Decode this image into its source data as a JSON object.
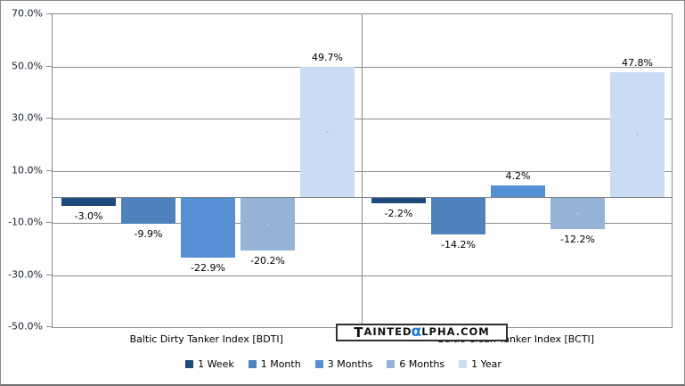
{
  "chart_data": {
    "type": "bar",
    "title": "",
    "categories": [
      "Baltic Dirty Tanker Index [BDTI]",
      "Baltic Clean Tanker Index [BCTI]"
    ],
    "series": [
      {
        "name": "1 Week",
        "color": "#1e4a7c",
        "values": [
          -3.0,
          -2.2
        ],
        "labels": [
          "-3.0%",
          "-2.2%"
        ]
      },
      {
        "name": "1 Month",
        "color": "#4f81bd",
        "values": [
          -9.9,
          -14.2
        ],
        "labels": [
          "-9.9%",
          "-14.2%"
        ]
      },
      {
        "name": "3 Months",
        "color": "#5590d5",
        "values": [
          -22.9,
          4.2
        ],
        "labels": [
          "-22.9%",
          "4.2%"
        ]
      },
      {
        "name": "6 Months",
        "color": "#95b3d7",
        "dot_color": "rgba(255,255,255,0.35)",
        "values": [
          -20.2,
          -12.2
        ],
        "labels": [
          "-20.2%",
          "-12.2%"
        ]
      },
      {
        "name": "1 Year",
        "color": "#c9dcf3",
        "dot_color": "#9cc0e8",
        "values": [
          49.7,
          47.8
        ],
        "labels": [
          "49.7%",
          "47.8%"
        ]
      }
    ],
    "y_axis": {
      "min": -50,
      "max": 70,
      "tick_values": [
        70,
        50,
        30,
        10,
        -10,
        -30,
        -50
      ],
      "tick_labels": [
        "70.0%",
        "50.0%",
        "30.0%",
        "10.0%",
        "-10.0%",
        "-30.0%",
        "-50.0%"
      ]
    },
    "grid": true,
    "legend_position": "bottom"
  },
  "watermark": {
    "lead": "T",
    "body": "AINTED",
    "alpha": "α",
    "tail": "LPHA.COM",
    "alpha_color": "#1b7cd0"
  },
  "colors": {
    "axis_text": "#1a2130",
    "data_label_text": "#000000",
    "grid_line": "#8c8c8c",
    "outer_border": "#808080",
    "background": "#fdfefd"
  }
}
